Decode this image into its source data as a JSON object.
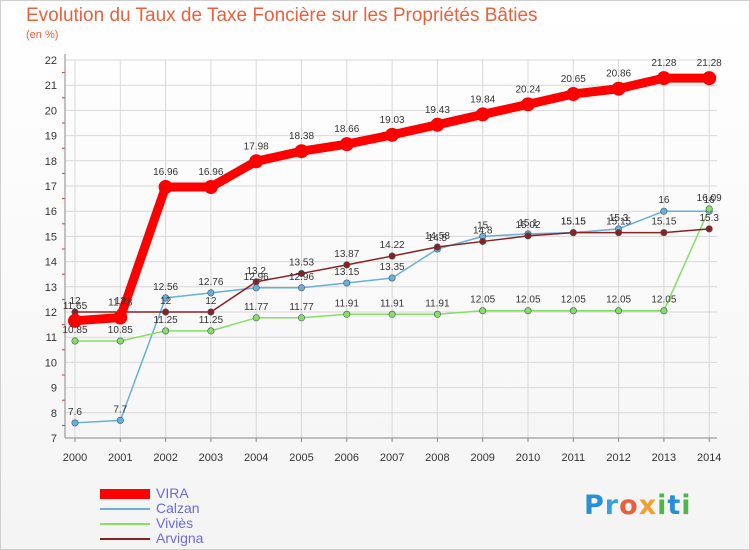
{
  "title": "Evolution du Taux de Taxe Foncière sur les Propriétés Bâties",
  "subtitle": "(en %)",
  "logo_text": "Proxiti",
  "logo_colors": [
    "#2a8fd6",
    "#3aa0e0",
    "#e8613c",
    "#f0a030",
    "#4db848",
    "#2a8fd6",
    "#4db848"
  ],
  "chart_data": {
    "type": "line",
    "x": [
      "2000",
      "2001",
      "2002",
      "2003",
      "2004",
      "2005",
      "2006",
      "2007",
      "2008",
      "2009",
      "2010",
      "2011",
      "2012",
      "2013",
      "2014"
    ],
    "ylim": [
      7,
      22
    ],
    "yticks": [
      "7",
      "8",
      "9",
      "10",
      "11",
      "12",
      "13",
      "14",
      "15",
      "16",
      "17",
      "18",
      "19",
      "20",
      "21",
      "22"
    ],
    "grid": true,
    "legend_position": "bottom-left",
    "series": [
      {
        "name": "VIRA",
        "color": "#ff0000",
        "values": [
          11.65,
          11.78,
          16.96,
          16.96,
          17.98,
          18.38,
          18.66,
          19.03,
          19.43,
          19.84,
          20.24,
          20.65,
          20.86,
          21.28,
          21.28
        ],
        "labels": [
          "11.65",
          "11.78",
          "16.96",
          "16.96",
          "17.98",
          "18.38",
          "18.66",
          "19.03",
          "19.43",
          "19.84",
          "20.24",
          "20.65",
          "20.86",
          "21.28",
          "21.28"
        ]
      },
      {
        "name": "Calzan",
        "color": "#6aaedb",
        "values": [
          7.6,
          7.7,
          12.56,
          12.76,
          12.96,
          12.96,
          13.15,
          13.35,
          14.5,
          15,
          15.1,
          15.15,
          15.3,
          16,
          16
        ],
        "labels": [
          "7.6",
          "7.7",
          "12.56",
          "12.76",
          "12.96",
          "12.96",
          "13.15",
          "13.35",
          "14.5",
          "15",
          "15.1",
          "15.15",
          "15.3",
          "16",
          "16"
        ]
      },
      {
        "name": "Viviès",
        "color": "#88dd66",
        "values": [
          10.85,
          10.85,
          11.25,
          11.25,
          11.77,
          11.77,
          11.91,
          11.91,
          11.91,
          12.05,
          12.05,
          12.05,
          12.05,
          12.05,
          16.09
        ],
        "labels": [
          "10.85",
          "10.85",
          "11.25",
          "11.25",
          "11.77",
          "11.77",
          "11.91",
          "11.91",
          "11.91",
          "12.05",
          "12.05",
          "12.05",
          "12.05",
          "12.05",
          "16.09"
        ]
      },
      {
        "name": "Arvigna",
        "color": "#882222",
        "values": [
          12,
          12,
          12,
          12,
          13.2,
          13.53,
          13.87,
          14.22,
          14.58,
          14.8,
          15.02,
          15.15,
          15.15,
          15.15,
          15.3
        ],
        "labels": [
          "12",
          "12",
          "12",
          "12",
          "13.2",
          "13.53",
          "13.87",
          "14.22",
          "14.58",
          "14.8",
          "15.02",
          "15.15",
          "15.15",
          "15.15",
          "15.3"
        ]
      }
    ]
  }
}
